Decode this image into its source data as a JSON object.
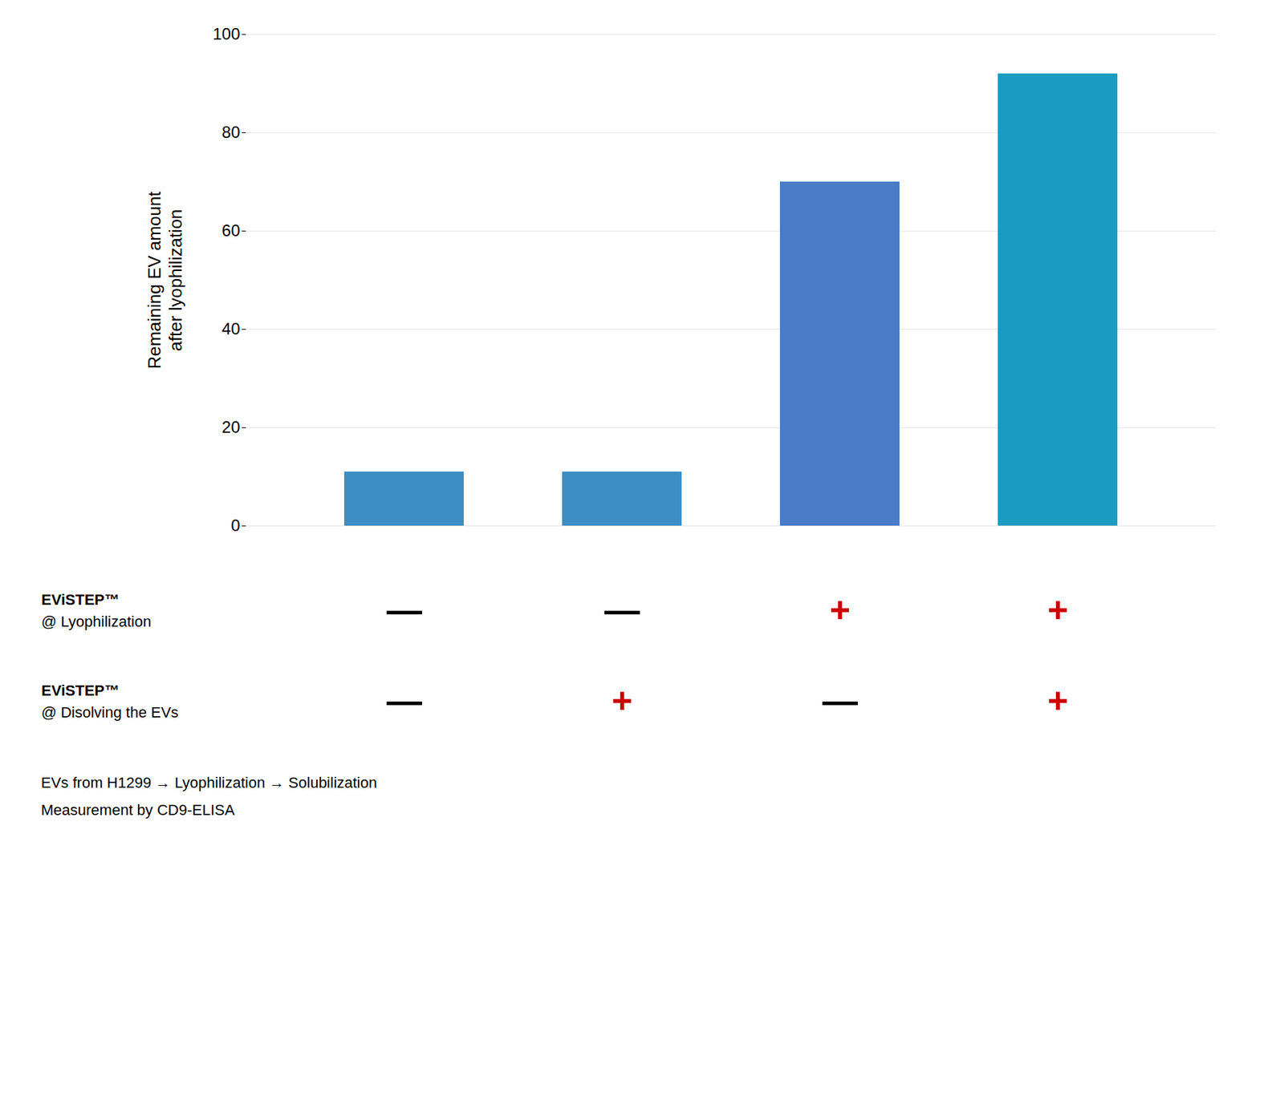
{
  "chart_data": {
    "type": "bar",
    "categories": [
      null,
      null,
      null,
      null
    ],
    "values": [
      11,
      11,
      70,
      92
    ],
    "colors": [
      "#3d8ec4",
      "#3d8ec4",
      "#4a7bc7",
      "#1a9cc0"
    ],
    "ylabel": "Remaining EV amount\nafter lyophilization",
    "ylim": [
      0,
      100
    ],
    "yticks": [
      0,
      20,
      40,
      60,
      80,
      100
    ],
    "grid": true,
    "annotations": [
      {
        "text": [
          "EViSTEP™",
          "@ Lyophilization"
        ],
        "signs": [
          "—",
          "—",
          "+",
          "+"
        ],
        "colors": [
          "#000000",
          "#000000",
          "#cc0000",
          "#cc0000"
        ]
      },
      {
        "text": [
          "EViSTEP™",
          "@ Disolving the EVs"
        ],
        "signs": [
          "—",
          "+",
          "—",
          "+"
        ],
        "colors": [
          "#000000",
          "#cc0000",
          "#000000",
          "#cc0000"
        ]
      }
    ],
    "footer": [
      "EVs from H1299 → Lyophilization → Solubilization",
      "Measurement by CD9-ELISA"
    ]
  }
}
